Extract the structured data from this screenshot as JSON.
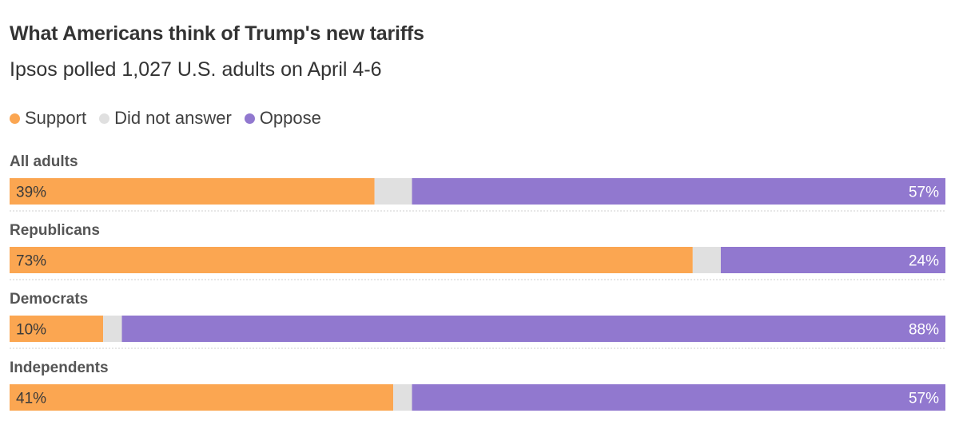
{
  "chart_data": {
    "type": "bar",
    "orientation": "horizontal",
    "stacked": true,
    "normalized": true,
    "title": "What Americans think of Trump's new tariffs",
    "subtitle": "Ipsos polled 1,027 U.S. adults on April 4-6",
    "legend_position": "top-left",
    "categories": [
      "All adults",
      "Republicans",
      "Democrats",
      "Independents"
    ],
    "series": [
      {
        "name": "Support",
        "color": "#FBA651",
        "values": [
          39,
          73,
          10,
          41
        ],
        "labels": [
          "39%",
          "73%",
          "10%",
          "41%"
        ],
        "label_color": "#3a3a3a"
      },
      {
        "name": "Did not answer",
        "color": "#E0E0E0",
        "values": [
          4,
          3,
          2,
          2
        ],
        "labels": [
          "",
          "",
          "",
          ""
        ],
        "label_color": "#3a3a3a"
      },
      {
        "name": "Oppose",
        "color": "#9178CF",
        "values": [
          57,
          24,
          88,
          57
        ],
        "labels": [
          "57%",
          "24%",
          "88%",
          "57%"
        ],
        "label_color": "#ffffff"
      }
    ],
    "xlim": [
      0,
      100
    ],
    "grid": false
  }
}
